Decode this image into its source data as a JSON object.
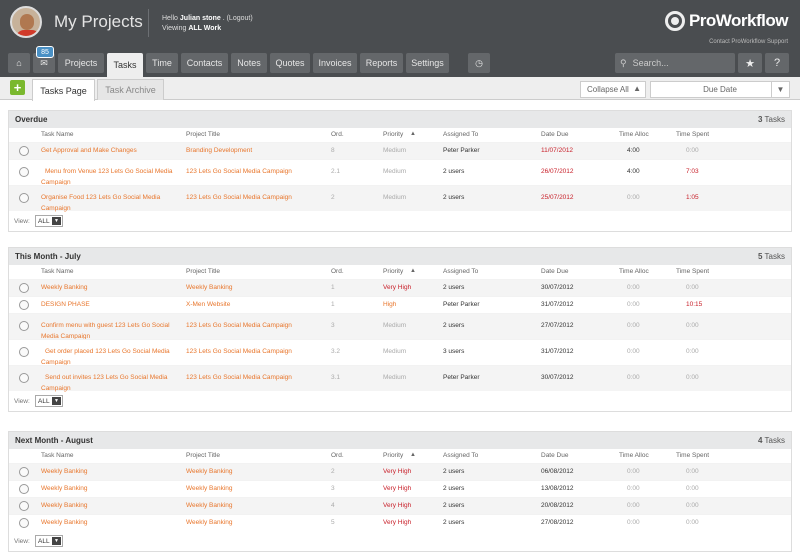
{
  "header": {
    "title": "My Projects",
    "hello_prefix": "Hello",
    "user_name": "Julian stone",
    "logout": ". (Logout)",
    "viewing_prefix": "Viewing",
    "viewing_value": "ALL Work",
    "logo_text": "ProWorkflow",
    "support_link": "Contact ProWorkflow Support"
  },
  "nav": {
    "messages_badge": "85",
    "items": [
      "Projects",
      "Tasks",
      "Time",
      "Contacts",
      "Notes",
      "Quotes",
      "Invoices",
      "Reports",
      "Settings"
    ],
    "active": "Tasks",
    "search_placeholder": "Search..."
  },
  "subtabs": {
    "items": [
      "Tasks Page",
      "Task Archive"
    ],
    "collapse_label": "Collapse All",
    "sort_label": "Due Date"
  },
  "columns": [
    "Task Name",
    "Project Title",
    "Ord.",
    "Priority",
    "Assigned To",
    "Date Due",
    "Time Alloc",
    "Time Spent"
  ],
  "view_label": "View:",
  "view_value": "ALL",
  "tasks_word": "Tasks",
  "sections": [
    {
      "title": "Overdue",
      "count": "3",
      "rows": [
        {
          "task": [
            "Get Approval and Make Changes"
          ],
          "project": [
            "Branding Development"
          ],
          "ord": "8",
          "priority": "Medium",
          "assigned": "Peter Parker",
          "due": "11/07/2012",
          "alloc": "4:00",
          "spent": "0:00"
        },
        {
          "task": [
            "Menu from Venue 123 Lets Go Social Media",
            "Campaign"
          ],
          "project": [
            "123 Lets Go Social Media Campaign"
          ],
          "ord": "2.1",
          "priority": "Medium",
          "assigned": "2 users",
          "due": "26/07/2012",
          "alloc": "4:00",
          "spent": "7:03"
        },
        {
          "task": [
            "Organise Food 123 Lets Go Social Media",
            "Campaign"
          ],
          "project": [
            "123 Lets Go Social Media Campaign"
          ],
          "ord": "2",
          "priority": "Medium",
          "assigned": "2 users",
          "due": "25/07/2012",
          "alloc": "0:00",
          "spent": "1:05"
        }
      ]
    },
    {
      "title": "This Month - July",
      "count": "5",
      "rows": [
        {
          "task": [
            "Weekly Banking"
          ],
          "project": [
            "Weekly Banking"
          ],
          "ord": "1",
          "priority": "Very High",
          "assigned": "2 users",
          "due": "30/07/2012",
          "alloc": "0:00",
          "spent": "0:00"
        },
        {
          "task": [
            "DESIGN PHASE"
          ],
          "project": [
            "X-Men Website"
          ],
          "ord": "1",
          "priority": "High",
          "assigned": "Peter Parker",
          "due": "31/07/2012",
          "alloc": "0:00",
          "spent": "10:15"
        },
        {
          "task": [
            "Confirm menu with guest 123 Lets Go Social",
            "Media Campaign"
          ],
          "project": [
            "123 Lets Go Social Media Campaign"
          ],
          "ord": "3",
          "priority": "Medium",
          "assigned": "2 users",
          "due": "27/07/2012",
          "alloc": "0:00",
          "spent": "0:00"
        },
        {
          "task": [
            "Get order placed 123 Lets Go Social Media",
            "Campaign"
          ],
          "project": [
            "123 Lets Go Social Media Campaign"
          ],
          "ord": "3.2",
          "priority": "Medium",
          "assigned": "3 users",
          "due": "31/07/2012",
          "alloc": "0:00",
          "spent": "0:00"
        },
        {
          "task": [
            "Send out invites 123 Lets Go Social Media",
            "Campaign"
          ],
          "project": [
            "123 Lets Go Social Media Campaign"
          ],
          "ord": "3.1",
          "priority": "Medium",
          "assigned": "Peter Parker",
          "due": "30/07/2012",
          "alloc": "0:00",
          "spent": "0:00"
        }
      ]
    },
    {
      "title": "Next Month - August",
      "count": "4",
      "rows": [
        {
          "task": [
            "Weekly Banking"
          ],
          "project": [
            "Weekly Banking"
          ],
          "ord": "2",
          "priority": "Very High",
          "assigned": "2 users",
          "due": "06/08/2012",
          "alloc": "0:00",
          "spent": "0:00"
        },
        {
          "task": [
            "Weekly Banking"
          ],
          "project": [
            "Weekly Banking"
          ],
          "ord": "3",
          "priority": "Very High",
          "assigned": "2 users",
          "due": "13/08/2012",
          "alloc": "0:00",
          "spent": "0:00"
        },
        {
          "task": [
            "Weekly Banking"
          ],
          "project": [
            "Weekly Banking"
          ],
          "ord": "4",
          "priority": "Very High",
          "assigned": "2 users",
          "due": "20/08/2012",
          "alloc": "0:00",
          "spent": "0:00"
        },
        {
          "task": [
            "Weekly Banking"
          ],
          "project": [
            "Weekly Banking"
          ],
          "ord": "5",
          "priority": "Very High",
          "assigned": "2 users",
          "due": "27/08/2012",
          "alloc": "0:00",
          "spent": "0:00"
        }
      ]
    }
  ],
  "colors": {
    "accent": "#e8762c",
    "overdue": "#c8202a",
    "header_bg": "#4a4d50",
    "add_green": "#7ab82e"
  }
}
